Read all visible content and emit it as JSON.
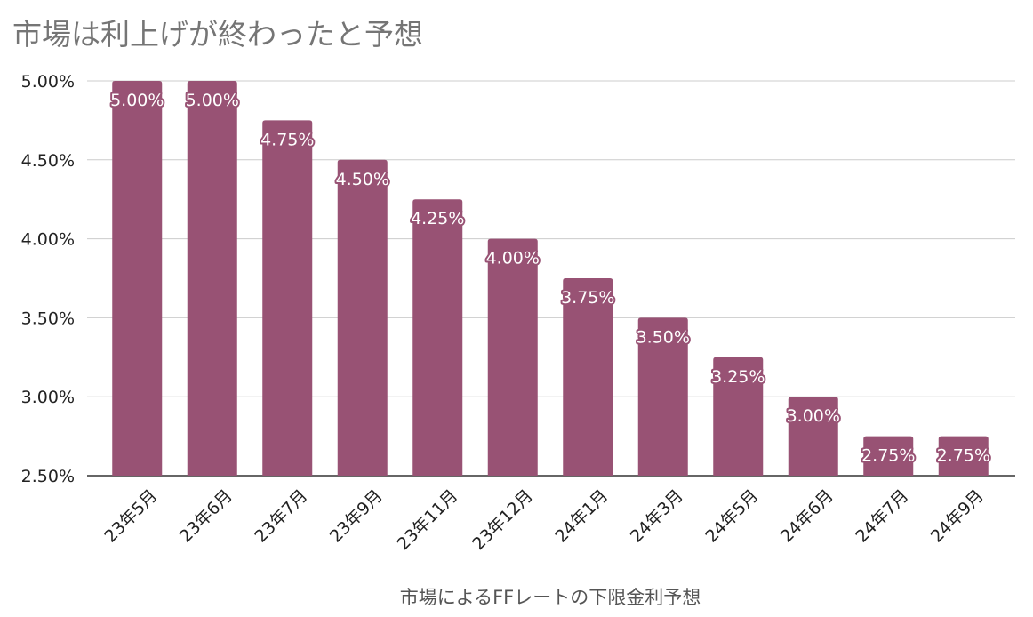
{
  "chart_data": {
    "type": "bar",
    "title": "市場は利上げが終わったと予想",
    "xlabel": "市場によるFFレートの下限金利予想",
    "ylabel": "",
    "categories": [
      "23年5月",
      "23年6月",
      "23年7月",
      "23年9月",
      "23年11月",
      "23年12月",
      "24年1月",
      "24年3月",
      "24年5月",
      "24年6月",
      "24年7月",
      "24年9月"
    ],
    "values": [
      5.0,
      5.0,
      4.75,
      4.5,
      4.25,
      4.0,
      3.75,
      3.5,
      3.25,
      3.0,
      2.75,
      2.75
    ],
    "data_labels": [
      "5.00%",
      "5.00%",
      "4.75%",
      "4.50%",
      "4.25%",
      "4.00%",
      "3.75%",
      "3.50%",
      "3.25%",
      "3.00%",
      "2.75%",
      "2.75%"
    ],
    "ylim": [
      2.5,
      5.0
    ],
    "yticks": [
      2.5,
      3.0,
      3.5,
      4.0,
      4.5,
      5.0
    ],
    "ytick_labels": [
      "2.50%",
      "3.00%",
      "3.50%",
      "4.00%",
      "4.50%",
      "5.00%"
    ],
    "grid": true,
    "legend": "none",
    "colors": {
      "bar": "#985274",
      "grid": "#cccccc",
      "axis": "#333333",
      "title": "#757575",
      "tick_text": "#222222",
      "label_text": "#ffffff",
      "xlabel_text": "#555555"
    }
  }
}
